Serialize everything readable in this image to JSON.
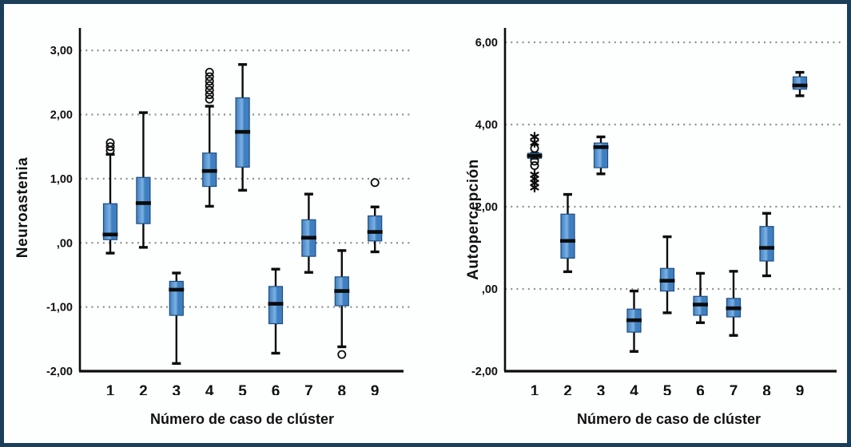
{
  "figure": {
    "border_color": "#1c3e58",
    "background": "#fdfefe",
    "box_fill": "#3f7fc1",
    "box_fill_light": "#7db1e2",
    "box_stroke": "#1d4e80",
    "line_color": "#0c0c0c",
    "grid_color": "#8f8f8f"
  },
  "chart_data": [
    {
      "type": "box",
      "title": "",
      "ylabel": "Neuroastenia",
      "xlabel": "Número de caso de clúster",
      "ylim": [
        -2,
        3.35
      ],
      "grid": "dotted-horizontal",
      "legend": "none",
      "yticks": [
        {
          "v": 3,
          "label": "3,00",
          "grid": true
        },
        {
          "v": 2,
          "label": "2,00",
          "grid": true
        },
        {
          "v": 1,
          "label": "1,00",
          "grid": true
        },
        {
          "v": 0,
          "label": ",00",
          "grid": true
        },
        {
          "v": -1,
          "label": "-1,00",
          "grid": true
        },
        {
          "v": -2,
          "label": "-2,00",
          "grid": false
        }
      ],
      "categories": [
        "1",
        "2",
        "3",
        "4",
        "5",
        "6",
        "7",
        "8",
        "9"
      ],
      "boxes": [
        {
          "cluster": "1",
          "lo": -0.16,
          "q1": 0.05,
          "med": 0.13,
          "q3": 0.61,
          "hi": 1.38,
          "outliers": [
            1.44,
            1.5,
            1.56
          ],
          "extremes": []
        },
        {
          "cluster": "2",
          "lo": -0.07,
          "q1": 0.3,
          "med": 0.62,
          "q3": 1.02,
          "hi": 2.03,
          "outliers": [],
          "extremes": []
        },
        {
          "cluster": "3",
          "lo": -1.88,
          "q1": -1.13,
          "med": -0.73,
          "q3": -0.6,
          "hi": -0.47,
          "outliers": [],
          "extremes": []
        },
        {
          "cluster": "4",
          "lo": 0.57,
          "q1": 0.88,
          "med": 1.12,
          "q3": 1.4,
          "hi": 2.13,
          "outliers": [
            2.24,
            2.31,
            2.38,
            2.45,
            2.52,
            2.59,
            2.66
          ],
          "extremes": []
        },
        {
          "cluster": "5",
          "lo": 0.82,
          "q1": 1.18,
          "med": 1.73,
          "q3": 2.26,
          "hi": 2.78,
          "outliers": [],
          "extremes": []
        },
        {
          "cluster": "6",
          "lo": -1.72,
          "q1": -1.26,
          "med": -0.95,
          "q3": -0.68,
          "hi": -0.41,
          "outliers": [],
          "extremes": []
        },
        {
          "cluster": "7",
          "lo": -0.46,
          "q1": -0.21,
          "med": 0.08,
          "q3": 0.36,
          "hi": 0.76,
          "outliers": [],
          "extremes": []
        },
        {
          "cluster": "8",
          "lo": -1.62,
          "q1": -0.98,
          "med": -0.75,
          "q3": -0.53,
          "hi": -0.12,
          "outliers": [
            -1.74
          ],
          "extremes": []
        },
        {
          "cluster": "9",
          "lo": -0.14,
          "q1": 0.03,
          "med": 0.17,
          "q3": 0.42,
          "hi": 0.56,
          "outliers": [
            0.94
          ],
          "extremes": []
        }
      ]
    },
    {
      "type": "box",
      "title": "",
      "ylabel": "Autopercepción",
      "xlabel": "Número de caso de clúster",
      "ylim": [
        -2,
        6.35
      ],
      "grid": "dotted-horizontal",
      "legend": "none",
      "yticks": [
        {
          "v": 6,
          "label": "6,00",
          "grid": true
        },
        {
          "v": 4,
          "label": "4,00",
          "grid": true
        },
        {
          "v": 2,
          "label": "2,00",
          "grid": true
        },
        {
          "v": 0,
          "label": ",00",
          "grid": true
        },
        {
          "v": -2,
          "label": "-2,00",
          "grid": false
        }
      ],
      "categories": [
        "1",
        "2",
        "3",
        "4",
        "5",
        "6",
        "7",
        "8",
        "9"
      ],
      "boxes": [
        {
          "cluster": "1",
          "lo": 3.18,
          "q1": 3.18,
          "med": 3.24,
          "q3": 3.3,
          "hi": 3.3,
          "outliers": [
            3.42,
            3.11,
            3.0
          ],
          "extremes": [
            3.7,
            3.56,
            2.78,
            2.68,
            2.58,
            2.47
          ]
        },
        {
          "cluster": "2",
          "lo": 0.42,
          "q1": 0.75,
          "med": 1.17,
          "q3": 1.82,
          "hi": 2.3,
          "outliers": [],
          "extremes": []
        },
        {
          "cluster": "3",
          "lo": 2.8,
          "q1": 2.95,
          "med": 3.45,
          "q3": 3.55,
          "hi": 3.7,
          "outliers": [],
          "extremes": []
        },
        {
          "cluster": "4",
          "lo": -1.52,
          "q1": -1.05,
          "med": -0.76,
          "q3": -0.49,
          "hi": -0.05,
          "outliers": [],
          "extremes": []
        },
        {
          "cluster": "5",
          "lo": -0.58,
          "q1": -0.05,
          "med": 0.2,
          "q3": 0.5,
          "hi": 1.27,
          "outliers": [],
          "extremes": []
        },
        {
          "cluster": "6",
          "lo": -0.82,
          "q1": -0.64,
          "med": -0.38,
          "q3": -0.18,
          "hi": 0.38,
          "outliers": [],
          "extremes": []
        },
        {
          "cluster": "7",
          "lo": -1.13,
          "q1": -0.68,
          "med": -0.47,
          "q3": -0.23,
          "hi": 0.43,
          "outliers": [],
          "extremes": []
        },
        {
          "cluster": "8",
          "lo": 0.32,
          "q1": 0.68,
          "med": 1.0,
          "q3": 1.52,
          "hi": 1.84,
          "outliers": [],
          "extremes": []
        },
        {
          "cluster": "9",
          "lo": 4.7,
          "q1": 4.86,
          "med": 4.95,
          "q3": 5.16,
          "hi": 5.27,
          "outliers": [],
          "extremes": []
        }
      ]
    }
  ]
}
